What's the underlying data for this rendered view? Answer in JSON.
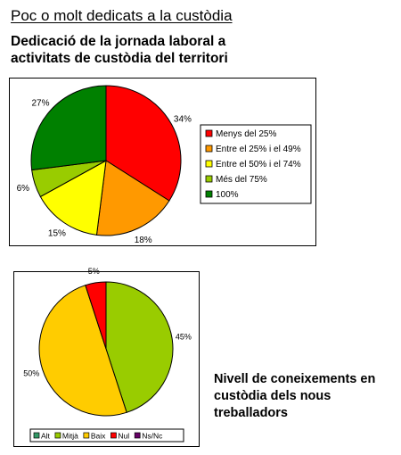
{
  "page": {
    "heading": "Poc o molt dedicats a la custòdia",
    "subtitle_lines": [
      "Dedicació de la jornada laboral a",
      "activitats de custòdia del territori"
    ],
    "caption_lines": [
      "Nivell de coneixements en",
      "custòdia dels nous",
      "treballadors"
    ]
  },
  "chart_data": [
    {
      "type": "pie",
      "title": "Dedicació de la jornada laboral a activitats de custòdia del territori",
      "legend_position": "right",
      "slices": [
        {
          "label": "Menys del 25%",
          "value": 34,
          "value_label": "34%",
          "color": "#ff0000"
        },
        {
          "label": "Entre el 25% i el 49%",
          "value": 18,
          "value_label": "18%",
          "color": "#ff9900"
        },
        {
          "label": "Entre el 50% i el 74%",
          "value": 15,
          "value_label": "15%",
          "color": "#ffff00"
        },
        {
          "label": "Més del 75%",
          "value": 6,
          "value_label": "6%",
          "color": "#99cc00"
        },
        {
          "label": "100%",
          "value": 27,
          "value_label": "27%",
          "color": "#008000"
        }
      ]
    },
    {
      "type": "pie",
      "title": "Nivell de coneixements en custòdia dels nous treballadors",
      "legend_position": "bottom",
      "slices": [
        {
          "label": "Alt",
          "value": 0,
          "value_label": "",
          "color": "#339966"
        },
        {
          "label": "Mitjà",
          "value": 45,
          "value_label": "45%",
          "color": "#99cc00"
        },
        {
          "label": "Baix",
          "value": 50,
          "value_label": "50%",
          "color": "#ffcc00"
        },
        {
          "label": "Nul",
          "value": 5,
          "value_label": "5%",
          "color": "#ff0000"
        },
        {
          "label": "Ns/Nc",
          "value": 0,
          "value_label": "",
          "color": "#660066"
        }
      ]
    }
  ]
}
